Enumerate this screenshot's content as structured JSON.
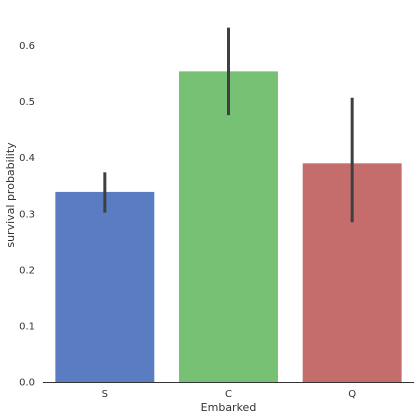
{
  "chart_data": {
    "type": "bar",
    "categories": [
      "S",
      "C",
      "Q"
    ],
    "values": [
      0.339,
      0.554,
      0.39
    ],
    "error_bars": [
      {
        "low": 0.302,
        "high": 0.374
      },
      {
        "low": 0.476,
        "high": 0.632
      },
      {
        "low": 0.285,
        "high": 0.507
      }
    ],
    "colors": [
      "#5a7dc2",
      "#76c173",
      "#c56c6c"
    ],
    "errorbar_color": "#3f3f3f",
    "xlabel": "Embarked",
    "ylabel": "survival probability",
    "ylim": [
      0,
      0.667
    ],
    "yticks": [
      0.0,
      0.1,
      0.2,
      0.3,
      0.4,
      0.5,
      0.6
    ],
    "ytick_labels": [
      "0.0",
      "0.1",
      "0.2",
      "0.3",
      "0.4",
      "0.5",
      "0.6"
    ],
    "grid": false
  }
}
